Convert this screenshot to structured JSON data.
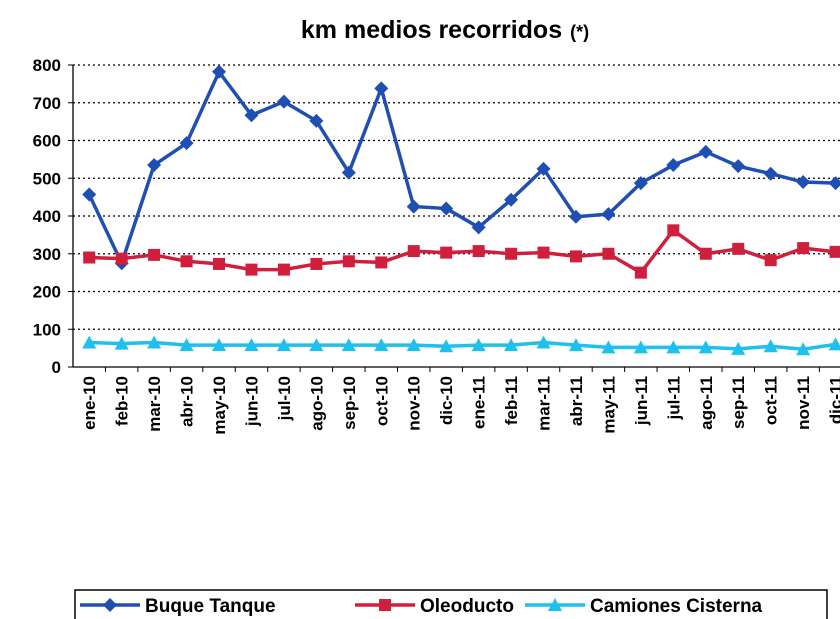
{
  "chart_data": {
    "type": "line",
    "title": "km medios recorridos",
    "title_note": "(*)",
    "categories": [
      "ene-10",
      "feb-10",
      "mar-10",
      "abr-10",
      "may-10",
      "jun-10",
      "jul-10",
      "ago-10",
      "sep-10",
      "oct-10",
      "nov-10",
      "dic-10",
      "ene-11",
      "feb-11",
      "mar-11",
      "abr-11",
      "may-11",
      "jun-11",
      "jul-11",
      "ago-11",
      "sep-11",
      "oct-11",
      "nov-11",
      "dic-11"
    ],
    "series": [
      {
        "name": "Buque Tanque",
        "color": "#1f4fb2",
        "marker": "diamond",
        "values": [
          457,
          275,
          535,
          593,
          782,
          667,
          703,
          652,
          515,
          738,
          425,
          420,
          370,
          443,
          525,
          398,
          405,
          487,
          535,
          570,
          532,
          512,
          490,
          487
        ]
      },
      {
        "name": "Oleoducto",
        "color": "#d01f3c",
        "marker": "square",
        "values": [
          290,
          287,
          297,
          280,
          273,
          258,
          258,
          273,
          280,
          277,
          307,
          303,
          307,
          300,
          303,
          293,
          300,
          250,
          362,
          300,
          313,
          283,
          315,
          305
        ]
      },
      {
        "name": "Camiones Cisterna",
        "color": "#1fc0ee",
        "marker": "triangle",
        "values": [
          65,
          62,
          65,
          58,
          58,
          58,
          58,
          58,
          58,
          58,
          58,
          55,
          58,
          58,
          65,
          58,
          52,
          52,
          52,
          52,
          48,
          55,
          47,
          60
        ]
      }
    ],
    "ylim": [
      0,
      800
    ],
    "yticks": [
      0,
      100,
      200,
      300,
      400,
      500,
      600,
      700,
      800
    ],
    "grid": true,
    "legend": "bottom"
  }
}
